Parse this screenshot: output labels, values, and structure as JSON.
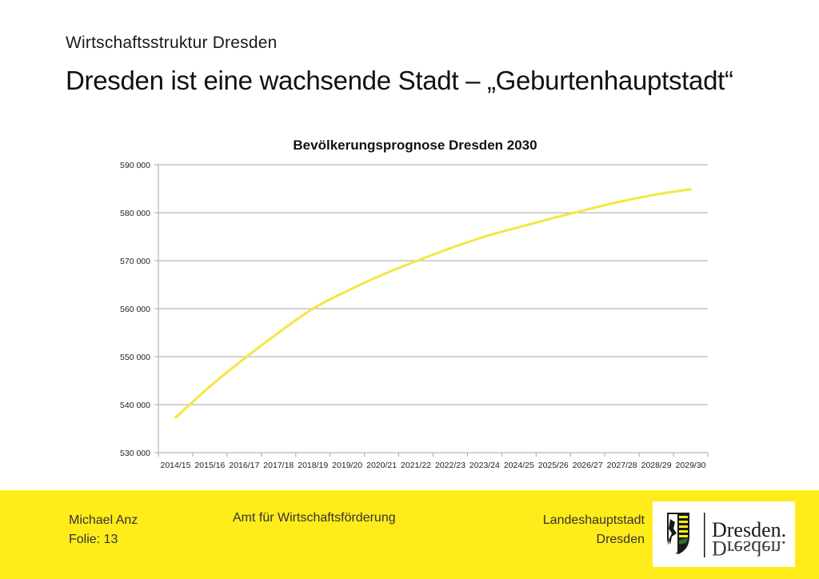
{
  "header": {
    "subtitle": "Wirtschaftsstruktur Dresden",
    "title": "Dresden ist eine wachsende Stadt – „Geburtenhauptstadt“"
  },
  "chart_data": {
    "type": "line",
    "title": "Bevölkerungsprognose Dresden 2030",
    "xlabel": "",
    "ylabel": "",
    "categories": [
      "2014/15",
      "2015/16",
      "2016/17",
      "2017/18",
      "2018/19",
      "2019/20",
      "2020/21",
      "2021/22",
      "2022/23",
      "2023/24",
      "2024/25",
      "2025/26",
      "2026/27",
      "2027/28",
      "2028/29",
      "2029/30"
    ],
    "series": [
      {
        "values": [
          537300,
          543800,
          549600,
          555000,
          560000,
          563700,
          567000,
          569900,
          572600,
          575000,
          577000,
          578900,
          580700,
          582400,
          583800,
          584900
        ]
      }
    ],
    "ylim": [
      530000,
      590000
    ],
    "yticks": [
      530000,
      540000,
      550000,
      560000,
      570000,
      580000,
      590000
    ],
    "ytick_labels": [
      "530 000",
      "540 000",
      "550 000",
      "560 000",
      "570 000",
      "580 000",
      "590 000"
    ],
    "grid": true,
    "legend": "none",
    "line_color": "#f5e642"
  },
  "footer": {
    "author": "Michael Anz",
    "slide": "Folie: 13",
    "department": "Amt für Wirtschaftsförderung",
    "city_line1": "Landeshauptstadt",
    "city_line2": "Dresden",
    "logo_text": "Dresden.",
    "background_color": "#ffec1a"
  }
}
